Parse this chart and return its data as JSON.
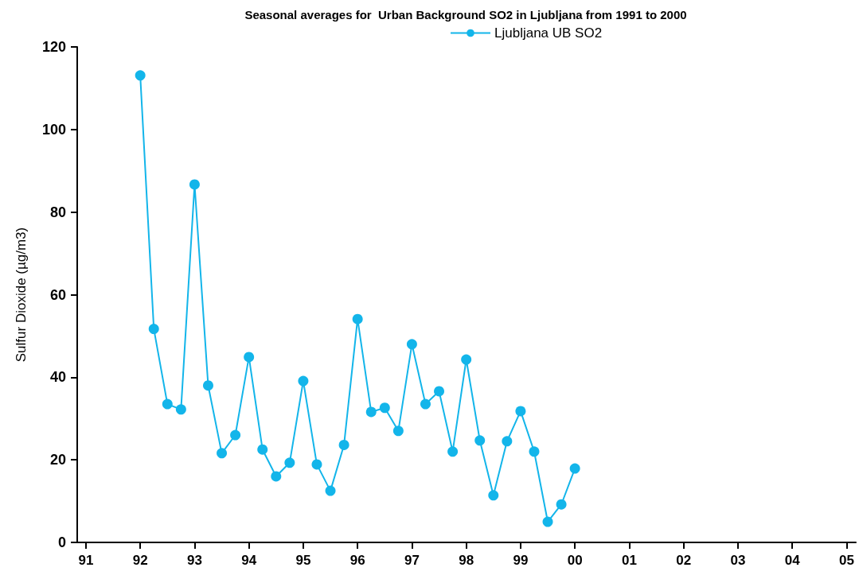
{
  "chart_data": {
    "type": "line",
    "title": "Seasonal averages for  Urban Background SO2 in Ljubljana from 1991 to 2000",
    "ylabel": "Sulfur Dioxide (µg/m3)",
    "x": [
      1992,
      1992.25,
      1992.5,
      1992.75,
      1993,
      1993.25,
      1993.5,
      1993.75,
      1994,
      1994.25,
      1994.5,
      1994.75,
      1995,
      1995.25,
      1995.5,
      1995.75,
      1996,
      1996.25,
      1996.5,
      1996.75,
      1997,
      1997.25,
      1997.5,
      1997.75,
      1998,
      1998.25,
      1998.5,
      1998.75,
      1999,
      1999.25,
      1999.5,
      1999.75,
      2000
    ],
    "series": [
      {
        "name": "Ljubljana UB SO2",
        "color": "#13b5ea",
        "values": [
          113.1,
          51.7,
          33.5,
          32.2,
          86.7,
          38.0,
          21.6,
          26.0,
          44.9,
          22.5,
          16.0,
          19.3,
          39.1,
          18.9,
          12.5,
          23.6,
          54.1,
          31.6,
          32.6,
          27.0,
          48.0,
          33.5,
          36.6,
          22.0,
          44.3,
          24.7,
          11.4,
          24.5,
          31.8,
          22.0,
          5.0,
          9.2,
          17.9
        ]
      }
    ],
    "xlim": [
      1990.84,
      2005.17
    ],
    "xticks": [
      {
        "value": 1991,
        "label": "91"
      },
      {
        "value": 1992,
        "label": "92"
      },
      {
        "value": 1993,
        "label": "93"
      },
      {
        "value": 1994,
        "label": "94"
      },
      {
        "value": 1995,
        "label": "95"
      },
      {
        "value": 1996,
        "label": "96"
      },
      {
        "value": 1997,
        "label": "97"
      },
      {
        "value": 1998,
        "label": "98"
      },
      {
        "value": 1999,
        "label": "99"
      },
      {
        "value": 2000,
        "label": "00"
      },
      {
        "value": 2001,
        "label": "01"
      },
      {
        "value": 2002,
        "label": "02"
      },
      {
        "value": 2003,
        "label": "03"
      },
      {
        "value": 2004,
        "label": "04"
      },
      {
        "value": 2005,
        "label": "05"
      }
    ],
    "ylim": [
      0,
      120
    ],
    "yticks": [
      0,
      20,
      40,
      60,
      80,
      100,
      120
    ],
    "grid": false,
    "legend": "top",
    "marker": "circle",
    "line_style": "solid"
  }
}
